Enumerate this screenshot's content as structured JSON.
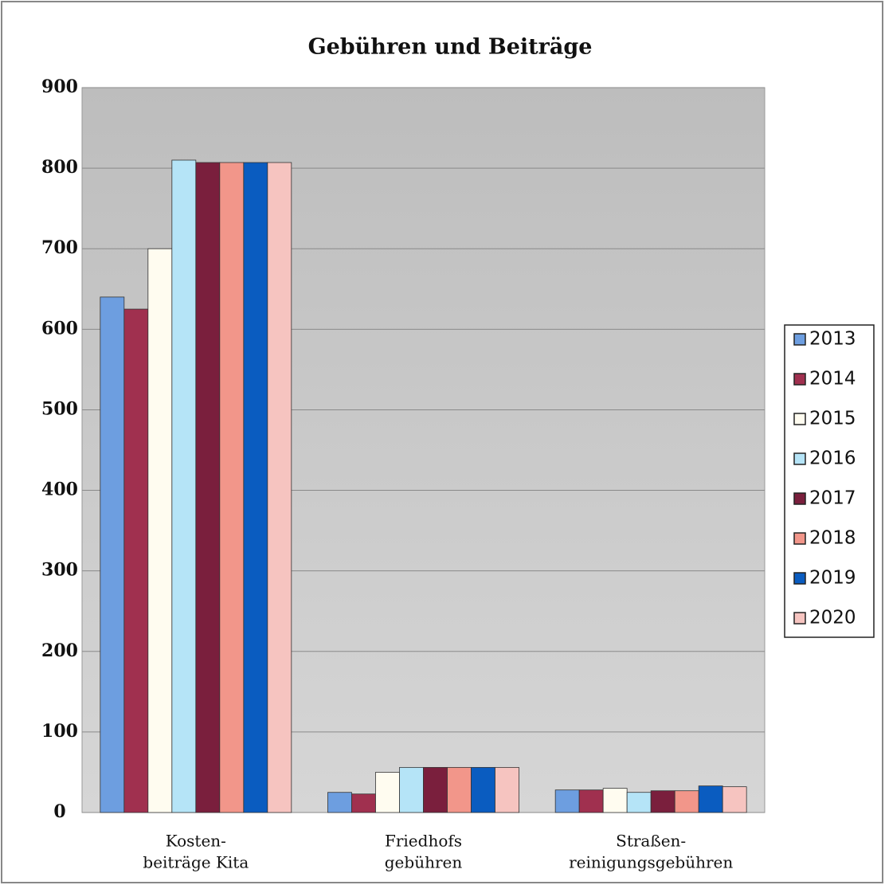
{
  "chart_data": {
    "type": "bar",
    "title": "Gebühren und Beiträge",
    "categories": [
      [
        "Kosten-",
        "beiträge Kita"
      ],
      [
        "Friedhofs",
        "gebühren"
      ],
      [
        "Straßen-",
        "reinigungsgebühren"
      ]
    ],
    "series": [
      {
        "name": "2013",
        "color": "#6d9ee0",
        "values": [
          640,
          25,
          28
        ]
      },
      {
        "name": "2014",
        "color": "#a0304f",
        "values": [
          625,
          23,
          28
        ]
      },
      {
        "name": "2015",
        "color": "#fffcf0",
        "values": [
          700,
          50,
          30
        ]
      },
      {
        "name": "2016",
        "color": "#b5e4f7",
        "values": [
          810,
          56,
          25
        ]
      },
      {
        "name": "2017",
        "color": "#7a1f3d",
        "values": [
          807,
          56,
          27
        ]
      },
      {
        "name": "2018",
        "color": "#f2968a",
        "values": [
          807,
          56,
          27
        ]
      },
      {
        "name": "2019",
        "color": "#0a5cc0",
        "values": [
          807,
          56,
          33
        ]
      },
      {
        "name": "2020",
        "color": "#f6c4c0",
        "values": [
          807,
          56,
          32
        ]
      }
    ],
    "ylim": [
      0,
      900
    ],
    "yticks": [
      0,
      100,
      200,
      300,
      400,
      500,
      600,
      700,
      800,
      900
    ],
    "grid": true,
    "legend": "right"
  }
}
